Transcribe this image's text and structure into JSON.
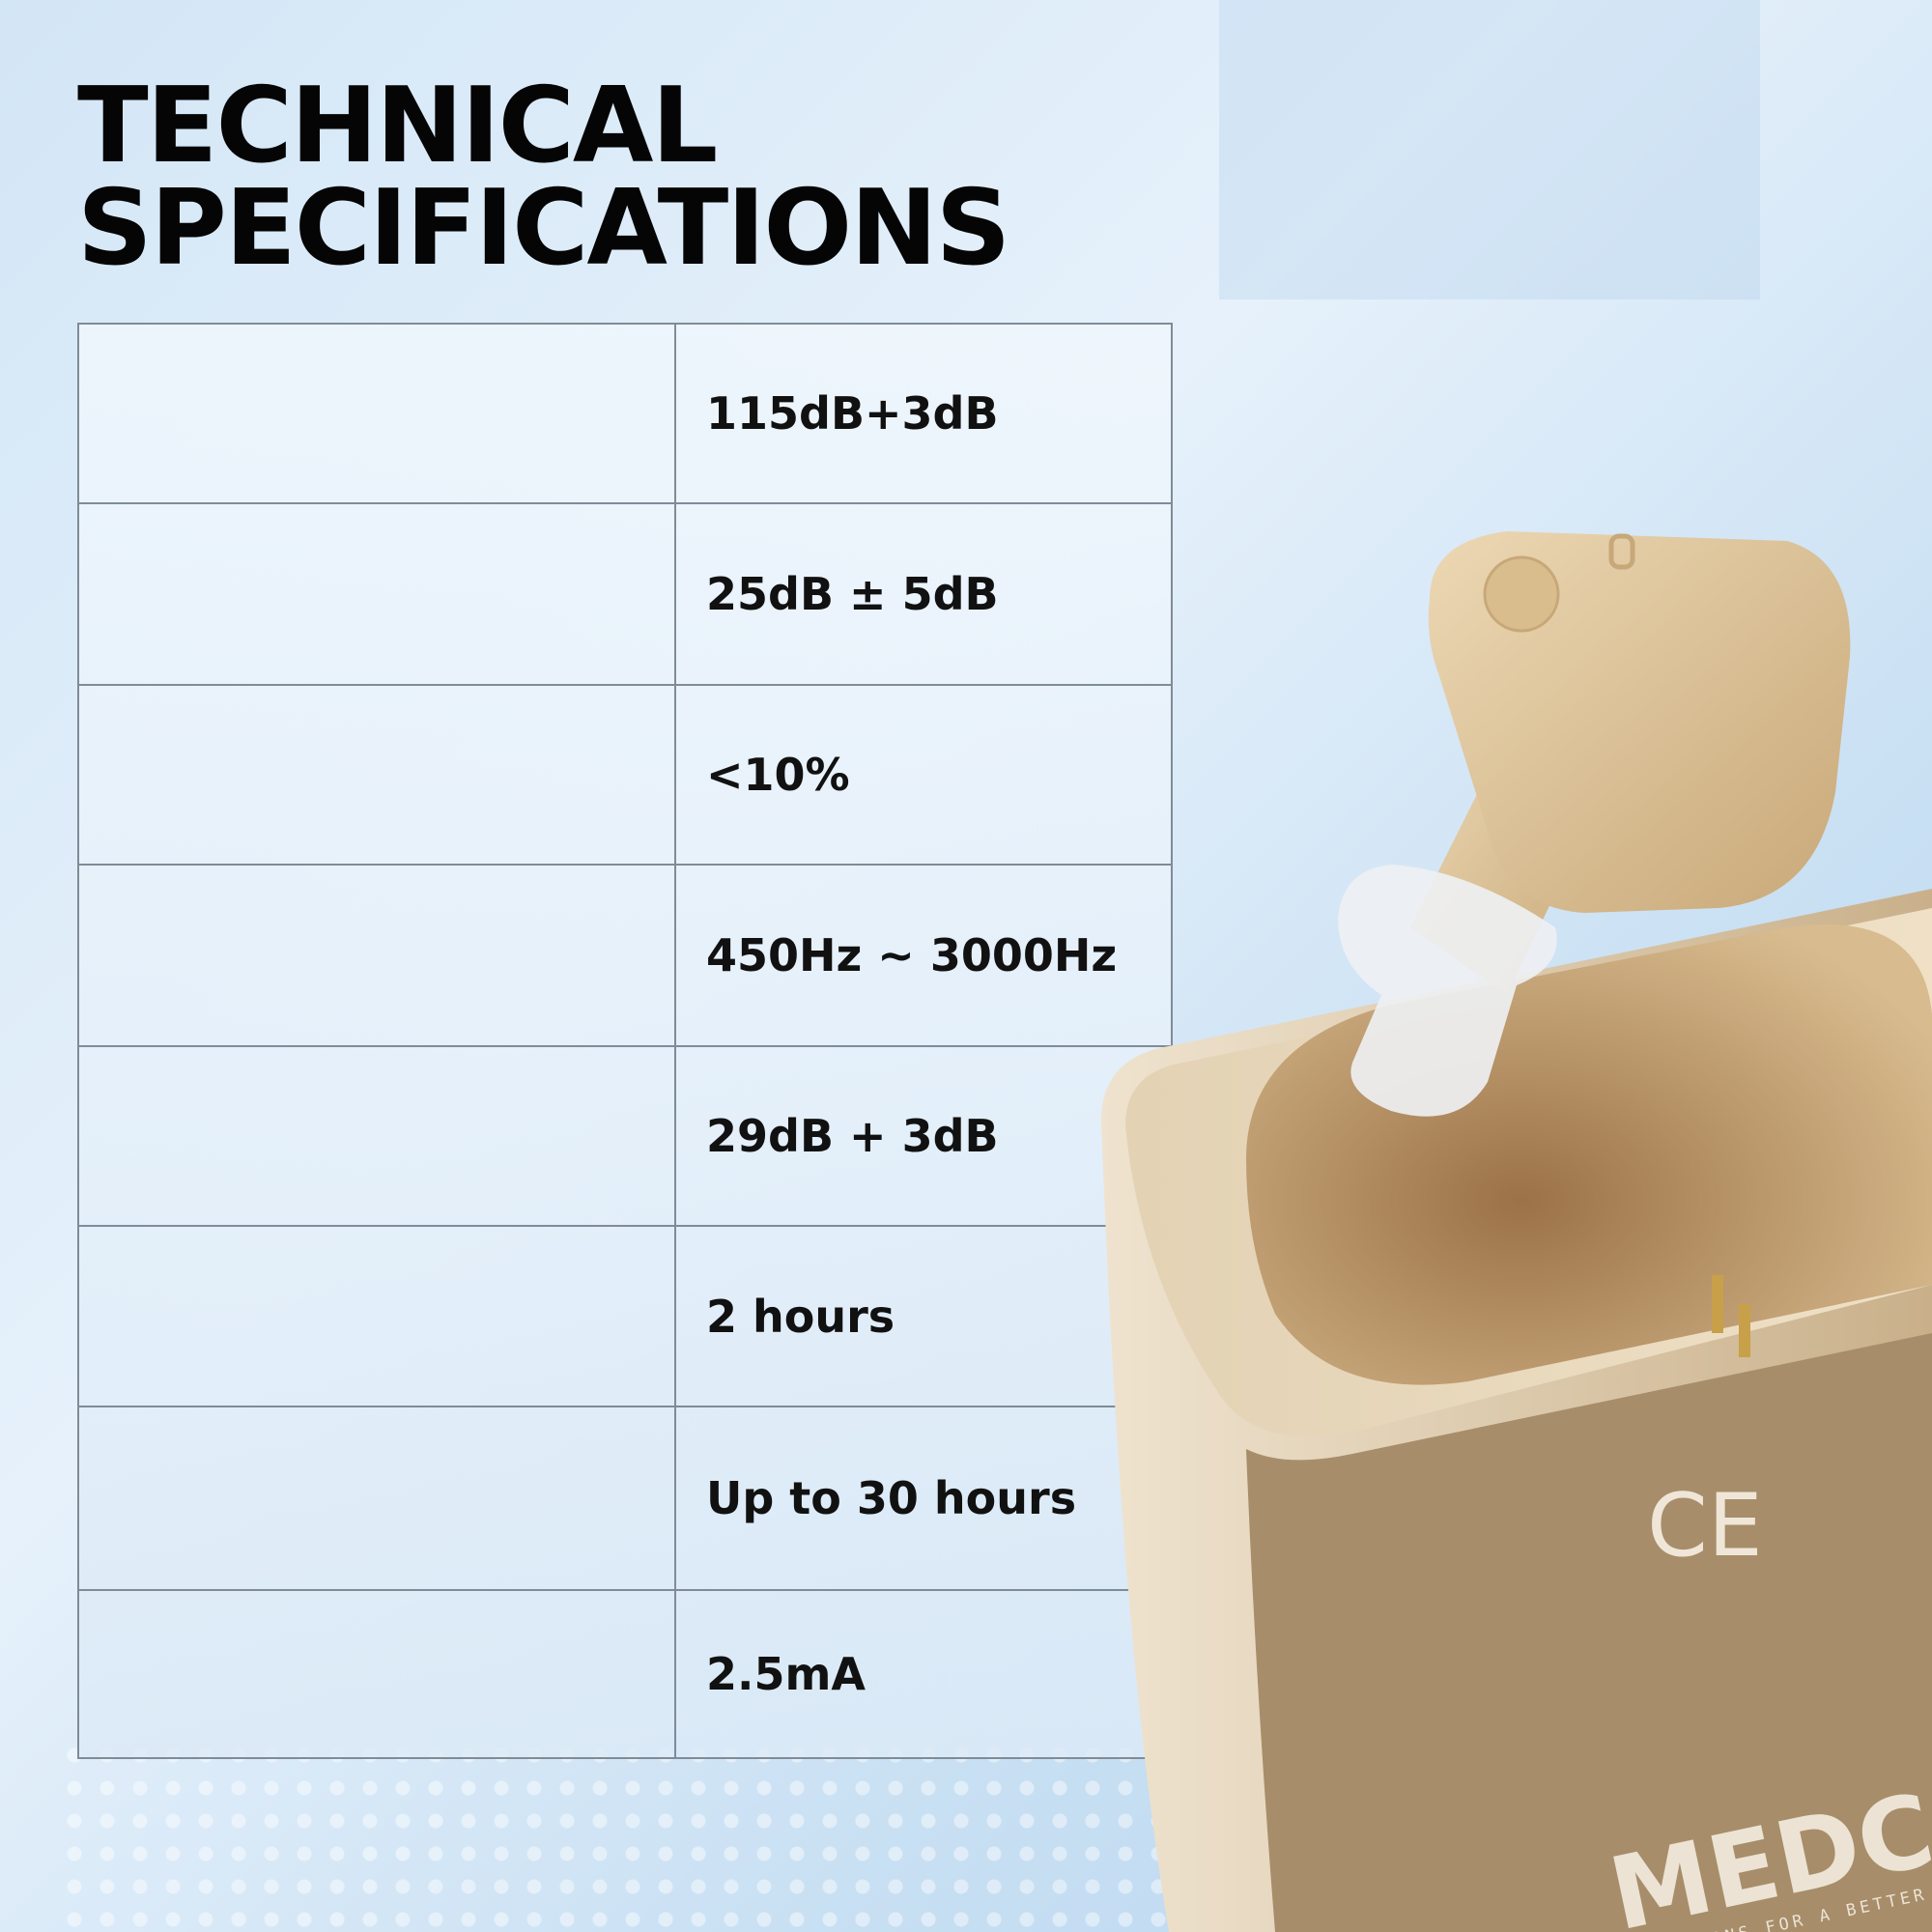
{
  "title": [
    "TECHNICAL",
    "SPECIFICATIONS"
  ],
  "specs": [
    {
      "label": "",
      "value": "115dB+3dB"
    },
    {
      "label": "",
      "value": "25dB ± 5dB"
    },
    {
      "label": "",
      "value": "<10%"
    },
    {
      "label": "",
      "value": "450Hz ~ 3000Hz"
    },
    {
      "label": "",
      "value": "29dB + 3dB"
    },
    {
      "label": "",
      "value": "2 hours"
    },
    {
      "label": "",
      "value": "Up to 30 hours"
    },
    {
      "label": "",
      "value": "2.5mA"
    }
  ],
  "product": {
    "certification_mark": "CE",
    "brand": "MEDCA",
    "brand_tagline": "SOLUTIONS FOR A BETTER WORLD",
    "case_color": "#a78d6a",
    "device_color": "#dcc49a"
  }
}
